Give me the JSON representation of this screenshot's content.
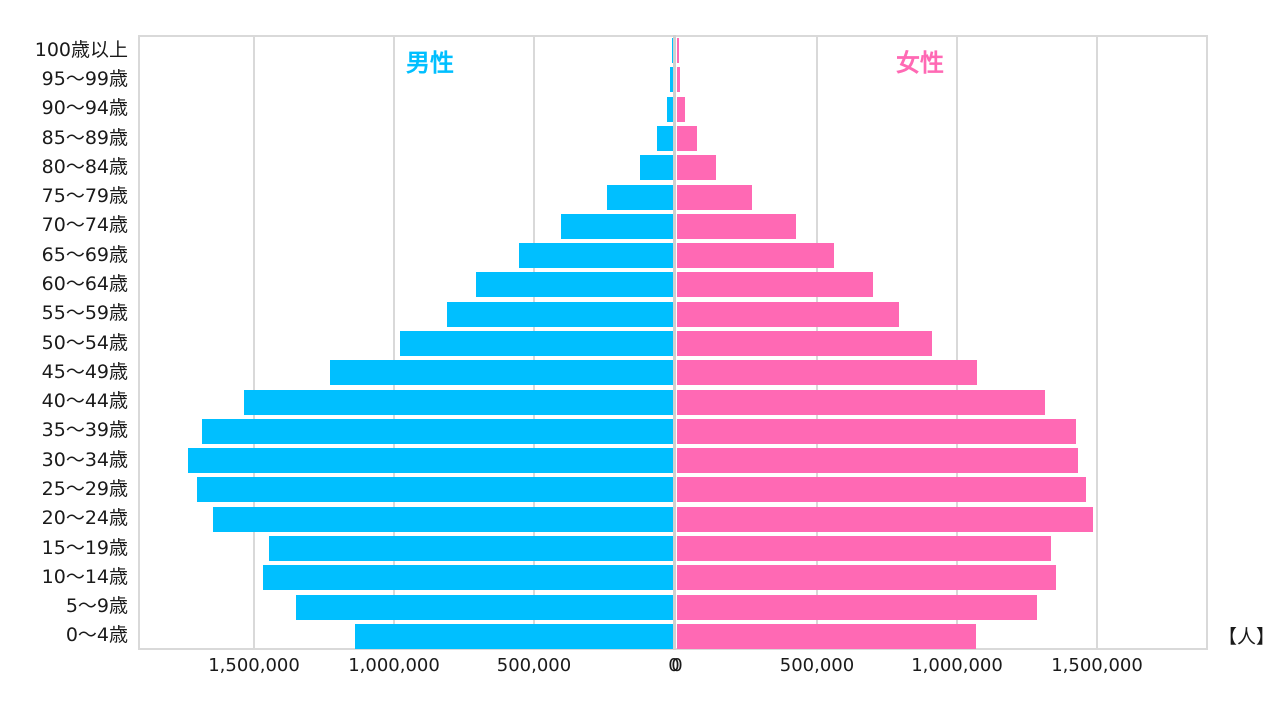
{
  "chart_data": {
    "type": "bar",
    "orientation": "horizontal",
    "subtype": "population-pyramid",
    "title": "",
    "xlabel": "",
    "ylabel": "",
    "unit_label": "【人】",
    "series_titles": {
      "male": "男性",
      "female": "女性"
    },
    "colors": {
      "male": "#00bfff",
      "female": "#ff69b4",
      "grid": "#d9d9d9"
    },
    "categories": [
      "100歳以上",
      "95〜99歳",
      "90〜94歳",
      "85〜89歳",
      "80〜84歳",
      "75〜79歳",
      "70〜74歳",
      "65〜69歳",
      "60〜64歳",
      "55〜59歳",
      "50〜54歳",
      "45〜49歳",
      "40〜44歳",
      "35〜39歳",
      "30〜34歳",
      "25〜29歳",
      "20〜24歳",
      "15〜19歳",
      "10〜14歳",
      "5〜9歳",
      "0〜4歳"
    ],
    "series": [
      {
        "name": "男性",
        "values": [
          5000,
          10000,
          22000,
          57000,
          118000,
          236000,
          400000,
          550000,
          703000,
          807000,
          975000,
          1225000,
          1532000,
          1682000,
          1732000,
          1700000,
          1643000,
          1443000,
          1464000,
          1346000,
          1136000
        ]
      },
      {
        "name": "女性",
        "values": [
          6000,
          10000,
          27000,
          72000,
          140000,
          268000,
          425000,
          561000,
          700000,
          793000,
          911000,
          1071000,
          1314000,
          1425000,
          1432000,
          1461000,
          1486000,
          1336000,
          1354000,
          1286000,
          1068000
        ]
      }
    ],
    "x_ticks_left": [
      "1,500,000",
      "1,000,000",
      "500,000",
      "0"
    ],
    "x_ticks_right": [
      "0",
      "500,000",
      "1,000,000",
      "1,500,000"
    ],
    "xlim": [
      -1900000,
      1900000
    ],
    "grid": true,
    "legend": "in-plot titles"
  }
}
